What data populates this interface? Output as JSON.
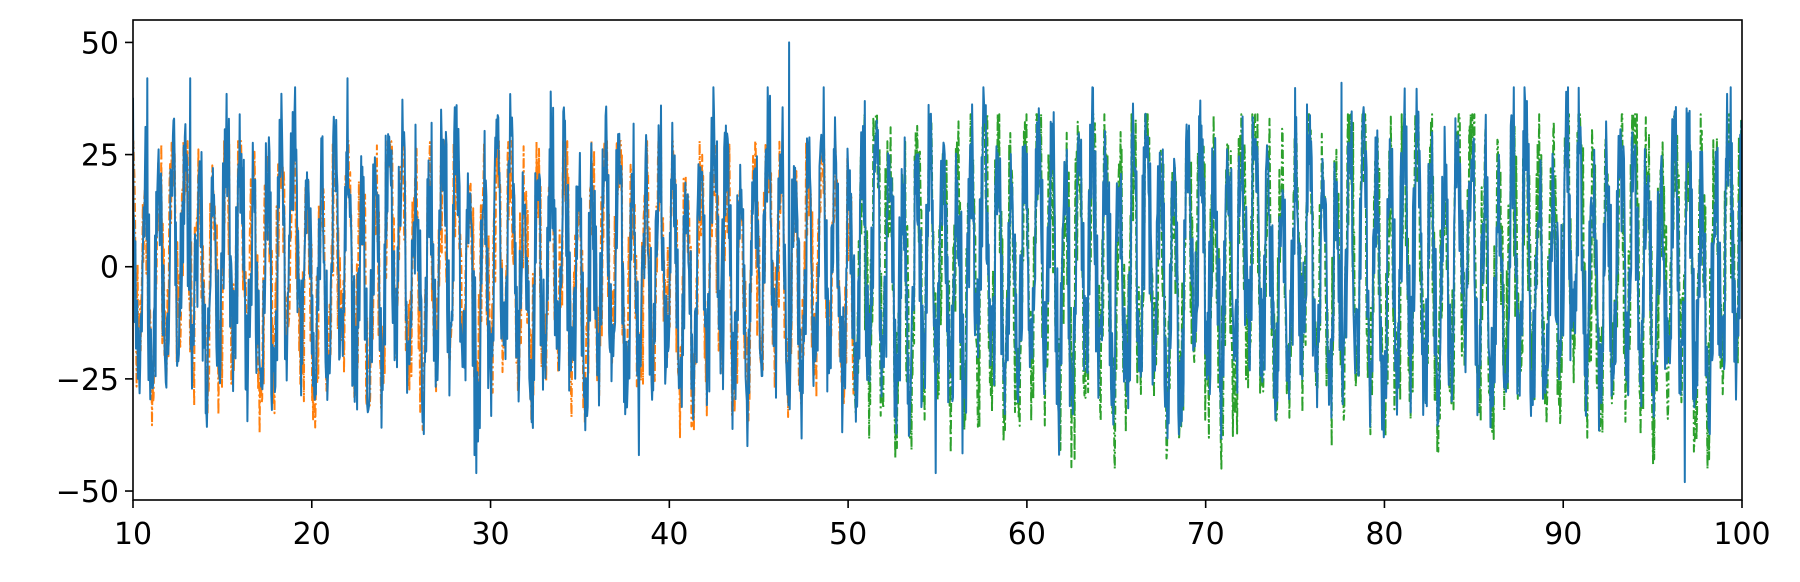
{
  "chart_data": {
    "type": "line",
    "title": "",
    "xlabel": "",
    "ylabel": "",
    "xlim": [
      10,
      100
    ],
    "ylim": [
      -52,
      55
    ],
    "x_ticks": [
      10,
      20,
      30,
      40,
      50,
      60,
      70,
      80,
      90,
      100
    ],
    "x_tick_labels": [
      "10",
      "20",
      "30",
      "40",
      "50",
      "60",
      "70",
      "80",
      "90",
      "100"
    ],
    "y_ticks": [
      -50,
      -25,
      0,
      25,
      50
    ],
    "y_tick_labels": [
      "−50",
      "−25",
      "0",
      "25",
      "50"
    ],
    "grid": false,
    "legend": "none",
    "series": [
      {
        "color": "#1f77b4",
        "style": "solid",
        "x_range": [
          10,
          100
        ],
        "peak_values": [
          {
            "x": 10.8,
            "y": 42
          },
          {
            "x": 13.2,
            "y": 42
          },
          {
            "x": 22.0,
            "y": 42
          },
          {
            "x": 29.2,
            "y": -46
          },
          {
            "x": 46.7,
            "y": 50
          },
          {
            "x": 54.9,
            "y": -46
          },
          {
            "x": 77.6,
            "y": 41
          },
          {
            "x": 96.8,
            "y": -48
          }
        ]
      },
      {
        "color": "#ff7f0e",
        "style": "dashdot",
        "x_range": [
          10,
          50.3
        ],
        "upper_envelope": 28,
        "lower_envelope": -38
      },
      {
        "color": "#2ca02c",
        "style": "dashdot",
        "x_range": [
          50.3,
          100
        ],
        "upper_envelope": 34,
        "lower_envelope": -45
      }
    ]
  }
}
